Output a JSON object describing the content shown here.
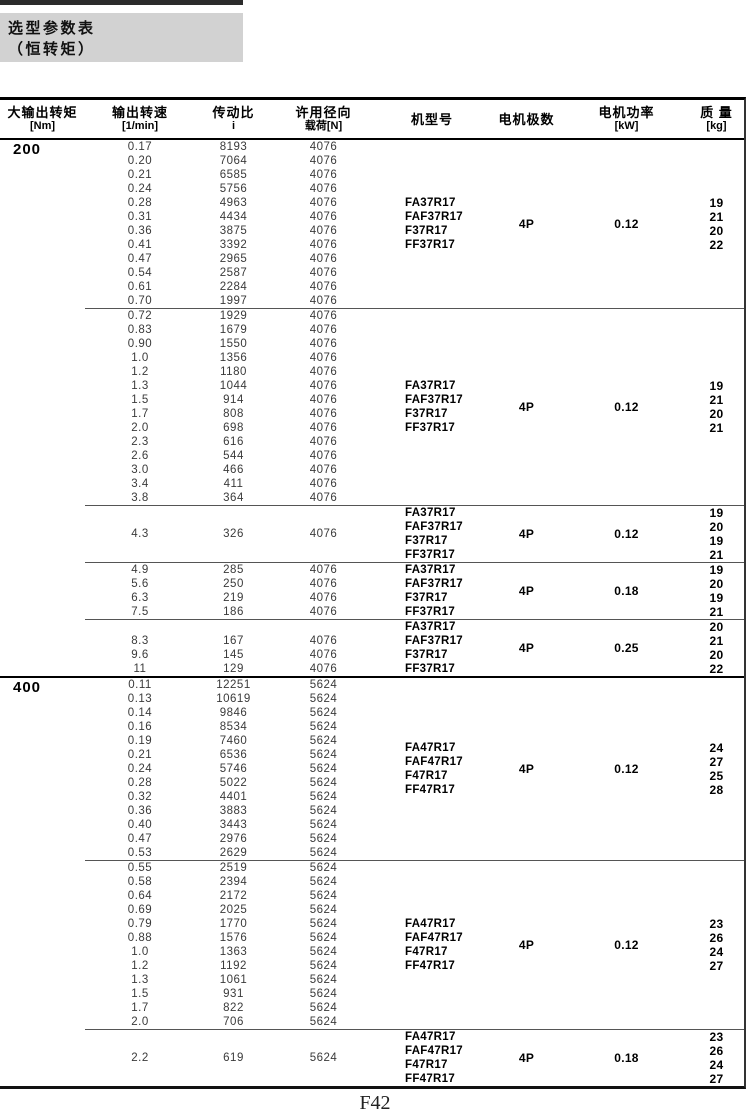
{
  "title_block": {
    "line1": "选型参数表",
    "line2": "（恒转矩）"
  },
  "footer": {
    "page_number": "F42"
  },
  "table": {
    "headers": [
      {
        "label": "大输出转矩",
        "unit": "[Nm]"
      },
      {
        "label": "输出转速",
        "unit": "[1/min]"
      },
      {
        "label": "传动比",
        "unit": "i"
      },
      {
        "label": "许用径向",
        "unit": "载荷[N]"
      },
      {
        "label": "机型号",
        "unit": ""
      },
      {
        "label": "电机极数",
        "unit": ""
      },
      {
        "label": "电机功率",
        "unit": "[kW]"
      },
      {
        "label": "质 量",
        "unit": "[kg]"
      }
    ],
    "sections": [
      {
        "torque": "200",
        "blocks": [
          {
            "speeds": [
              "0.17",
              "0.20",
              "0.21",
              "0.24",
              "0.28",
              "0.31",
              "0.36",
              "0.41",
              "0.47",
              "0.54",
              "0.61",
              "0.70"
            ],
            "ratios": [
              "8193",
              "7064",
              "6585",
              "5756",
              "4963",
              "4434",
              "3875",
              "3392",
              "2965",
              "2587",
              "2284",
              "1997"
            ],
            "loads": [
              "4076",
              "4076",
              "4076",
              "4076",
              "4076",
              "4076",
              "4076",
              "4076",
              "4076",
              "4076",
              "4076",
              "4076"
            ],
            "models": [
              "FA37R17",
              "FAF37R17",
              "F37R17",
              "FF37R17"
            ],
            "poles": "4P",
            "power": "0.12",
            "masses": [
              "19",
              "21",
              "20",
              "22"
            ],
            "speed_align": "center"
          },
          {
            "speeds": [
              "0.72",
              "0.83",
              "0.90",
              "1.0",
              "1.2",
              "1.3",
              "1.5",
              "1.7",
              "2.0",
              "2.3",
              "2.6",
              "3.0",
              "3.4",
              "3.8"
            ],
            "ratios": [
              "1929",
              "1679",
              "1550",
              "1356",
              "1180",
              "1044",
              "914",
              "808",
              "698",
              "616",
              "544",
              "466",
              "411",
              "364"
            ],
            "loads": [
              "4076",
              "4076",
              "4076",
              "4076",
              "4076",
              "4076",
              "4076",
              "4076",
              "4076",
              "4076",
              "4076",
              "4076",
              "4076",
              "4076"
            ],
            "models": [
              "FA37R17",
              "FAF37R17",
              "F37R17",
              "FF37R17"
            ],
            "poles": "4P",
            "power": "0.12",
            "masses": [
              "19",
              "21",
              "20",
              "21"
            ],
            "speed_align": "center"
          },
          {
            "speeds": [
              "4.3"
            ],
            "ratios": [
              "326"
            ],
            "loads": [
              "4076"
            ],
            "models": [
              "FA37R17",
              "FAF37R17",
              "F37R17",
              "FF37R17"
            ],
            "poles": "4P",
            "power": "0.12",
            "masses": [
              "19",
              "20",
              "19",
              "21"
            ],
            "speed_align": "center"
          },
          {
            "speeds": [
              "4.9",
              "5.6",
              "6.3",
              "7.5"
            ],
            "ratios": [
              "285",
              "250",
              "219",
              "186"
            ],
            "loads": [
              "4076",
              "4076",
              "4076",
              "4076"
            ],
            "models": [
              "FA37R17",
              "FAF37R17",
              "F37R17",
              "FF37R17"
            ],
            "poles": "4P",
            "power": "0.18",
            "masses": [
              "19",
              "20",
              "19",
              "21"
            ],
            "speed_align": "center"
          },
          {
            "speeds": [
              "8.3",
              "9.6",
              "11"
            ],
            "ratios": [
              "167",
              "145",
              "129"
            ],
            "loads": [
              "4076",
              "4076",
              "4076"
            ],
            "models": [
              "FA37R17",
              "FAF37R17",
              "F37R17",
              "FF37R17"
            ],
            "poles": "4P",
            "power": "0.25",
            "masses": [
              "20",
              "21",
              "20",
              "22"
            ],
            "speed_align": "bottom"
          }
        ]
      },
      {
        "torque": "400",
        "blocks": [
          {
            "speeds": [
              "0.11",
              "0.13",
              "0.14",
              "0.16",
              "0.19",
              "0.21",
              "0.24",
              "0.28",
              "0.32",
              "0.36",
              "0.40",
              "0.47",
              "0.53"
            ],
            "ratios": [
              "12251",
              "10619",
              "9846",
              "8534",
              "7460",
              "6536",
              "5746",
              "5022",
              "4401",
              "3883",
              "3443",
              "2976",
              "2629"
            ],
            "loads": [
              "5624",
              "5624",
              "5624",
              "5624",
              "5624",
              "5624",
              "5624",
              "5624",
              "5624",
              "5624",
              "5624",
              "5624",
              "5624"
            ],
            "models": [
              "FA47R17",
              "FAF47R17",
              "F47R17",
              "FF47R17"
            ],
            "poles": "4P",
            "power": "0.12",
            "masses": [
              "24",
              "27",
              "25",
              "28"
            ],
            "speed_align": "center"
          },
          {
            "speeds": [
              "0.55",
              "0.58",
              "0.64",
              "0.69",
              "0.79",
              "0.88",
              "1.0",
              "1.2",
              "1.3",
              "1.5",
              "1.7",
              "2.0"
            ],
            "ratios": [
              "2519",
              "2394",
              "2172",
              "2025",
              "1770",
              "1576",
              "1363",
              "1192",
              "1061",
              "931",
              "822",
              "706"
            ],
            "loads": [
              "5624",
              "5624",
              "5624",
              "5624",
              "5624",
              "5624",
              "5624",
              "5624",
              "5624",
              "5624",
              "5624",
              "5624"
            ],
            "models": [
              "FA47R17",
              "FAF47R17",
              "F47R17",
              "FF47R17"
            ],
            "poles": "4P",
            "power": "0.12",
            "masses": [
              "23",
              "26",
              "24",
              "27"
            ],
            "speed_align": "center"
          },
          {
            "speeds": [
              "2.2"
            ],
            "ratios": [
              "619"
            ],
            "loads": [
              "5624"
            ],
            "models": [
              "FA47R17",
              "FAF47R17",
              "F47R17",
              "FF47R17"
            ],
            "poles": "4P",
            "power": "0.18",
            "masses": [
              "23",
              "26",
              "24",
              "27"
            ],
            "speed_align": "center"
          }
        ]
      }
    ]
  }
}
